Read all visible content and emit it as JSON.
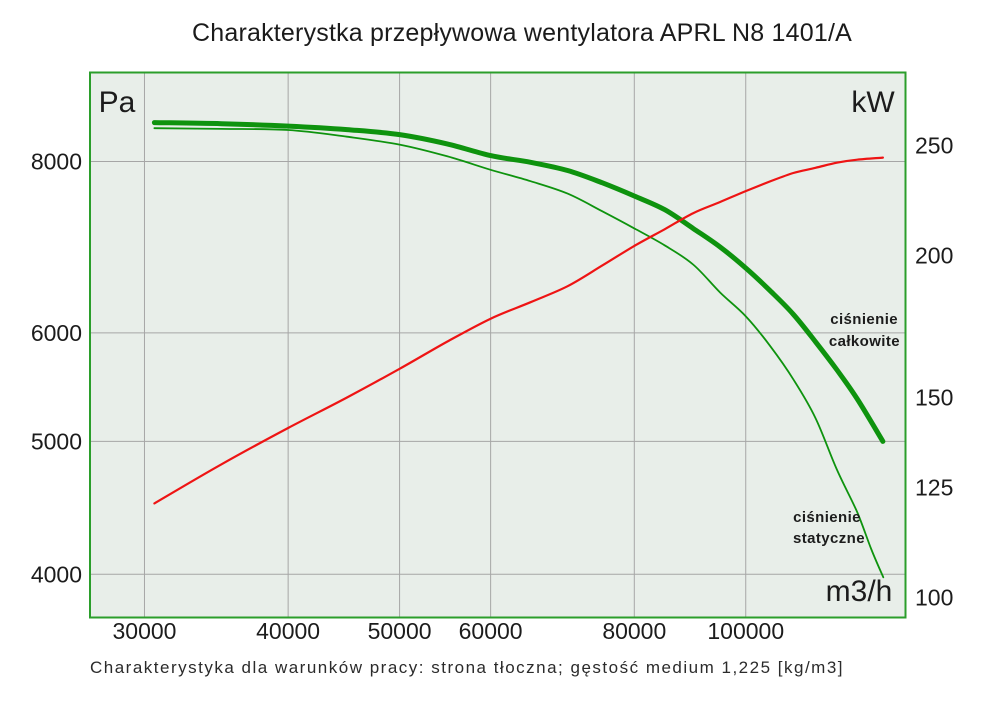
{
  "title": "Charakterystka przepływowa wentylatora APRL N8 1401/A",
  "caption": "Charakterystyka dla warunków pracy: strona tłoczna; gęstość medium 1,225 [kg/m3]",
  "colors": {
    "curve_green": "#0e930e",
    "curve_red": "#ee1414",
    "plot_border": "#2b9e2b",
    "plot_background": "#e8eee9",
    "gridline": "#a6a6a6",
    "text": "#1c1c1c"
  },
  "chart_data": {
    "type": "line",
    "title": "Charakterystka przepływowa wentylatora APRL N8 1401/A",
    "grid": true,
    "legend_position": "inline-labels",
    "x_axis": {
      "unit_label": "m3/h",
      "scale": "log",
      "range": [
        26900,
        137700
      ],
      "ticks": [
        30000,
        40000,
        50000,
        60000,
        80000,
        100000
      ],
      "tick_labels": [
        "30000",
        "40000",
        "50000",
        "60000",
        "80000",
        "100000"
      ]
    },
    "y_left": {
      "unit_label": "Pa",
      "scale": "log",
      "range": [
        3720,
        9290
      ],
      "ticks": [
        8000,
        6000,
        5000,
        4000
      ],
      "tick_labels": [
        "8000",
        "6000",
        "5000",
        "4000"
      ]
    },
    "y_right": {
      "unit_label": "kW",
      "scale": "log",
      "range": [
        96,
        290
      ],
      "ticks": [
        250,
        200,
        150,
        125,
        100
      ],
      "tick_labels": [
        "250",
        "200",
        "150",
        "125",
        "100"
      ]
    },
    "series": [
      {
        "name": "ciśnienie całkowite",
        "label_lines": [
          "ciśnienie",
          "całkowite"
        ],
        "axis": "left",
        "color": "#0e930e",
        "stroke_width": 5,
        "points": [
          [
            30600,
            8540
          ],
          [
            35000,
            8525
          ],
          [
            40000,
            8490
          ],
          [
            45000,
            8440
          ],
          [
            50000,
            8370
          ],
          [
            55000,
            8240
          ],
          [
            60000,
            8080
          ],
          [
            65000,
            7990
          ],
          [
            70000,
            7880
          ],
          [
            75000,
            7720
          ],
          [
            80000,
            7550
          ],
          [
            85000,
            7380
          ],
          [
            90000,
            7150
          ],
          [
            95000,
            6930
          ],
          [
            100000,
            6690
          ],
          [
            105000,
            6440
          ],
          [
            110000,
            6190
          ],
          [
            115000,
            5910
          ],
          [
            120000,
            5640
          ],
          [
            125000,
            5370
          ],
          [
            131600,
            5000
          ]
        ]
      },
      {
        "name": "ciśnienie statyczne",
        "label_lines": [
          "ciśnienie",
          "statyczne"
        ],
        "axis": "left",
        "color": "#0e930e",
        "stroke_width": 1.8,
        "points": [
          [
            30600,
            8460
          ],
          [
            35000,
            8450
          ],
          [
            40000,
            8435
          ],
          [
            45000,
            8340
          ],
          [
            50000,
            8230
          ],
          [
            55000,
            8070
          ],
          [
            60000,
            7890
          ],
          [
            65000,
            7740
          ],
          [
            70000,
            7580
          ],
          [
            75000,
            7360
          ],
          [
            80000,
            7150
          ],
          [
            85000,
            6950
          ],
          [
            90000,
            6730
          ],
          [
            95000,
            6420
          ],
          [
            100000,
            6170
          ],
          [
            105000,
            5870
          ],
          [
            110000,
            5550
          ],
          [
            115000,
            5200
          ],
          [
            120000,
            4770
          ],
          [
            125000,
            4440
          ],
          [
            128600,
            4170
          ],
          [
            131700,
            3980
          ]
        ]
      },
      {
        "name": "kW",
        "label_lines": [],
        "axis": "right",
        "color": "#ee1414",
        "stroke_width": 2.2,
        "points": [
          [
            30600,
            121
          ],
          [
            35000,
            131
          ],
          [
            40000,
            141
          ],
          [
            45000,
            150
          ],
          [
            50000,
            159
          ],
          [
            55000,
            168
          ],
          [
            60000,
            176
          ],
          [
            65000,
            182
          ],
          [
            70000,
            188
          ],
          [
            75000,
            196
          ],
          [
            80000,
            204
          ],
          [
            85000,
            211
          ],
          [
            90000,
            218
          ],
          [
            95000,
            223
          ],
          [
            100000,
            228
          ],
          [
            105000,
            232.5
          ],
          [
            110000,
            236.5
          ],
          [
            115000,
            239
          ],
          [
            120000,
            241.5
          ],
          [
            125000,
            243
          ],
          [
            131600,
            244
          ]
        ]
      }
    ]
  }
}
